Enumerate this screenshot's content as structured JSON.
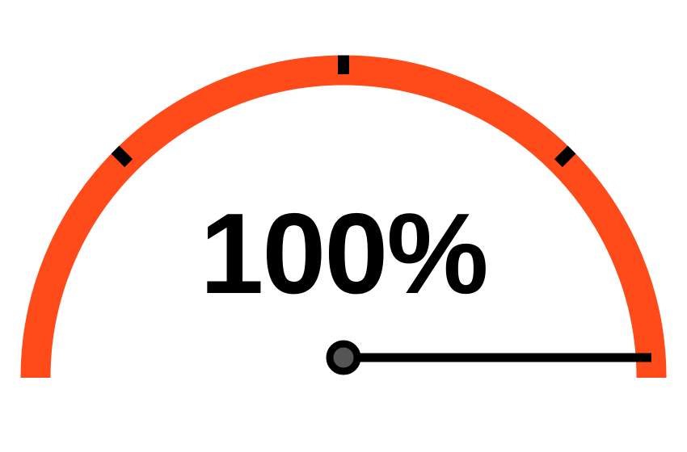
{
  "gauge": {
    "value_text": "100%",
    "level_fraction": 1.0,
    "tick_fractions": [
      0.25,
      0.5,
      0.75
    ],
    "colors": {
      "arc": "#ff4b1a",
      "tick": "#000000",
      "needle": "#000000",
      "hub_center": "#555555",
      "background": "#ffffff"
    },
    "icons": {
      "needle": "needle-icon",
      "hub": "needle-hub-icon"
    }
  }
}
